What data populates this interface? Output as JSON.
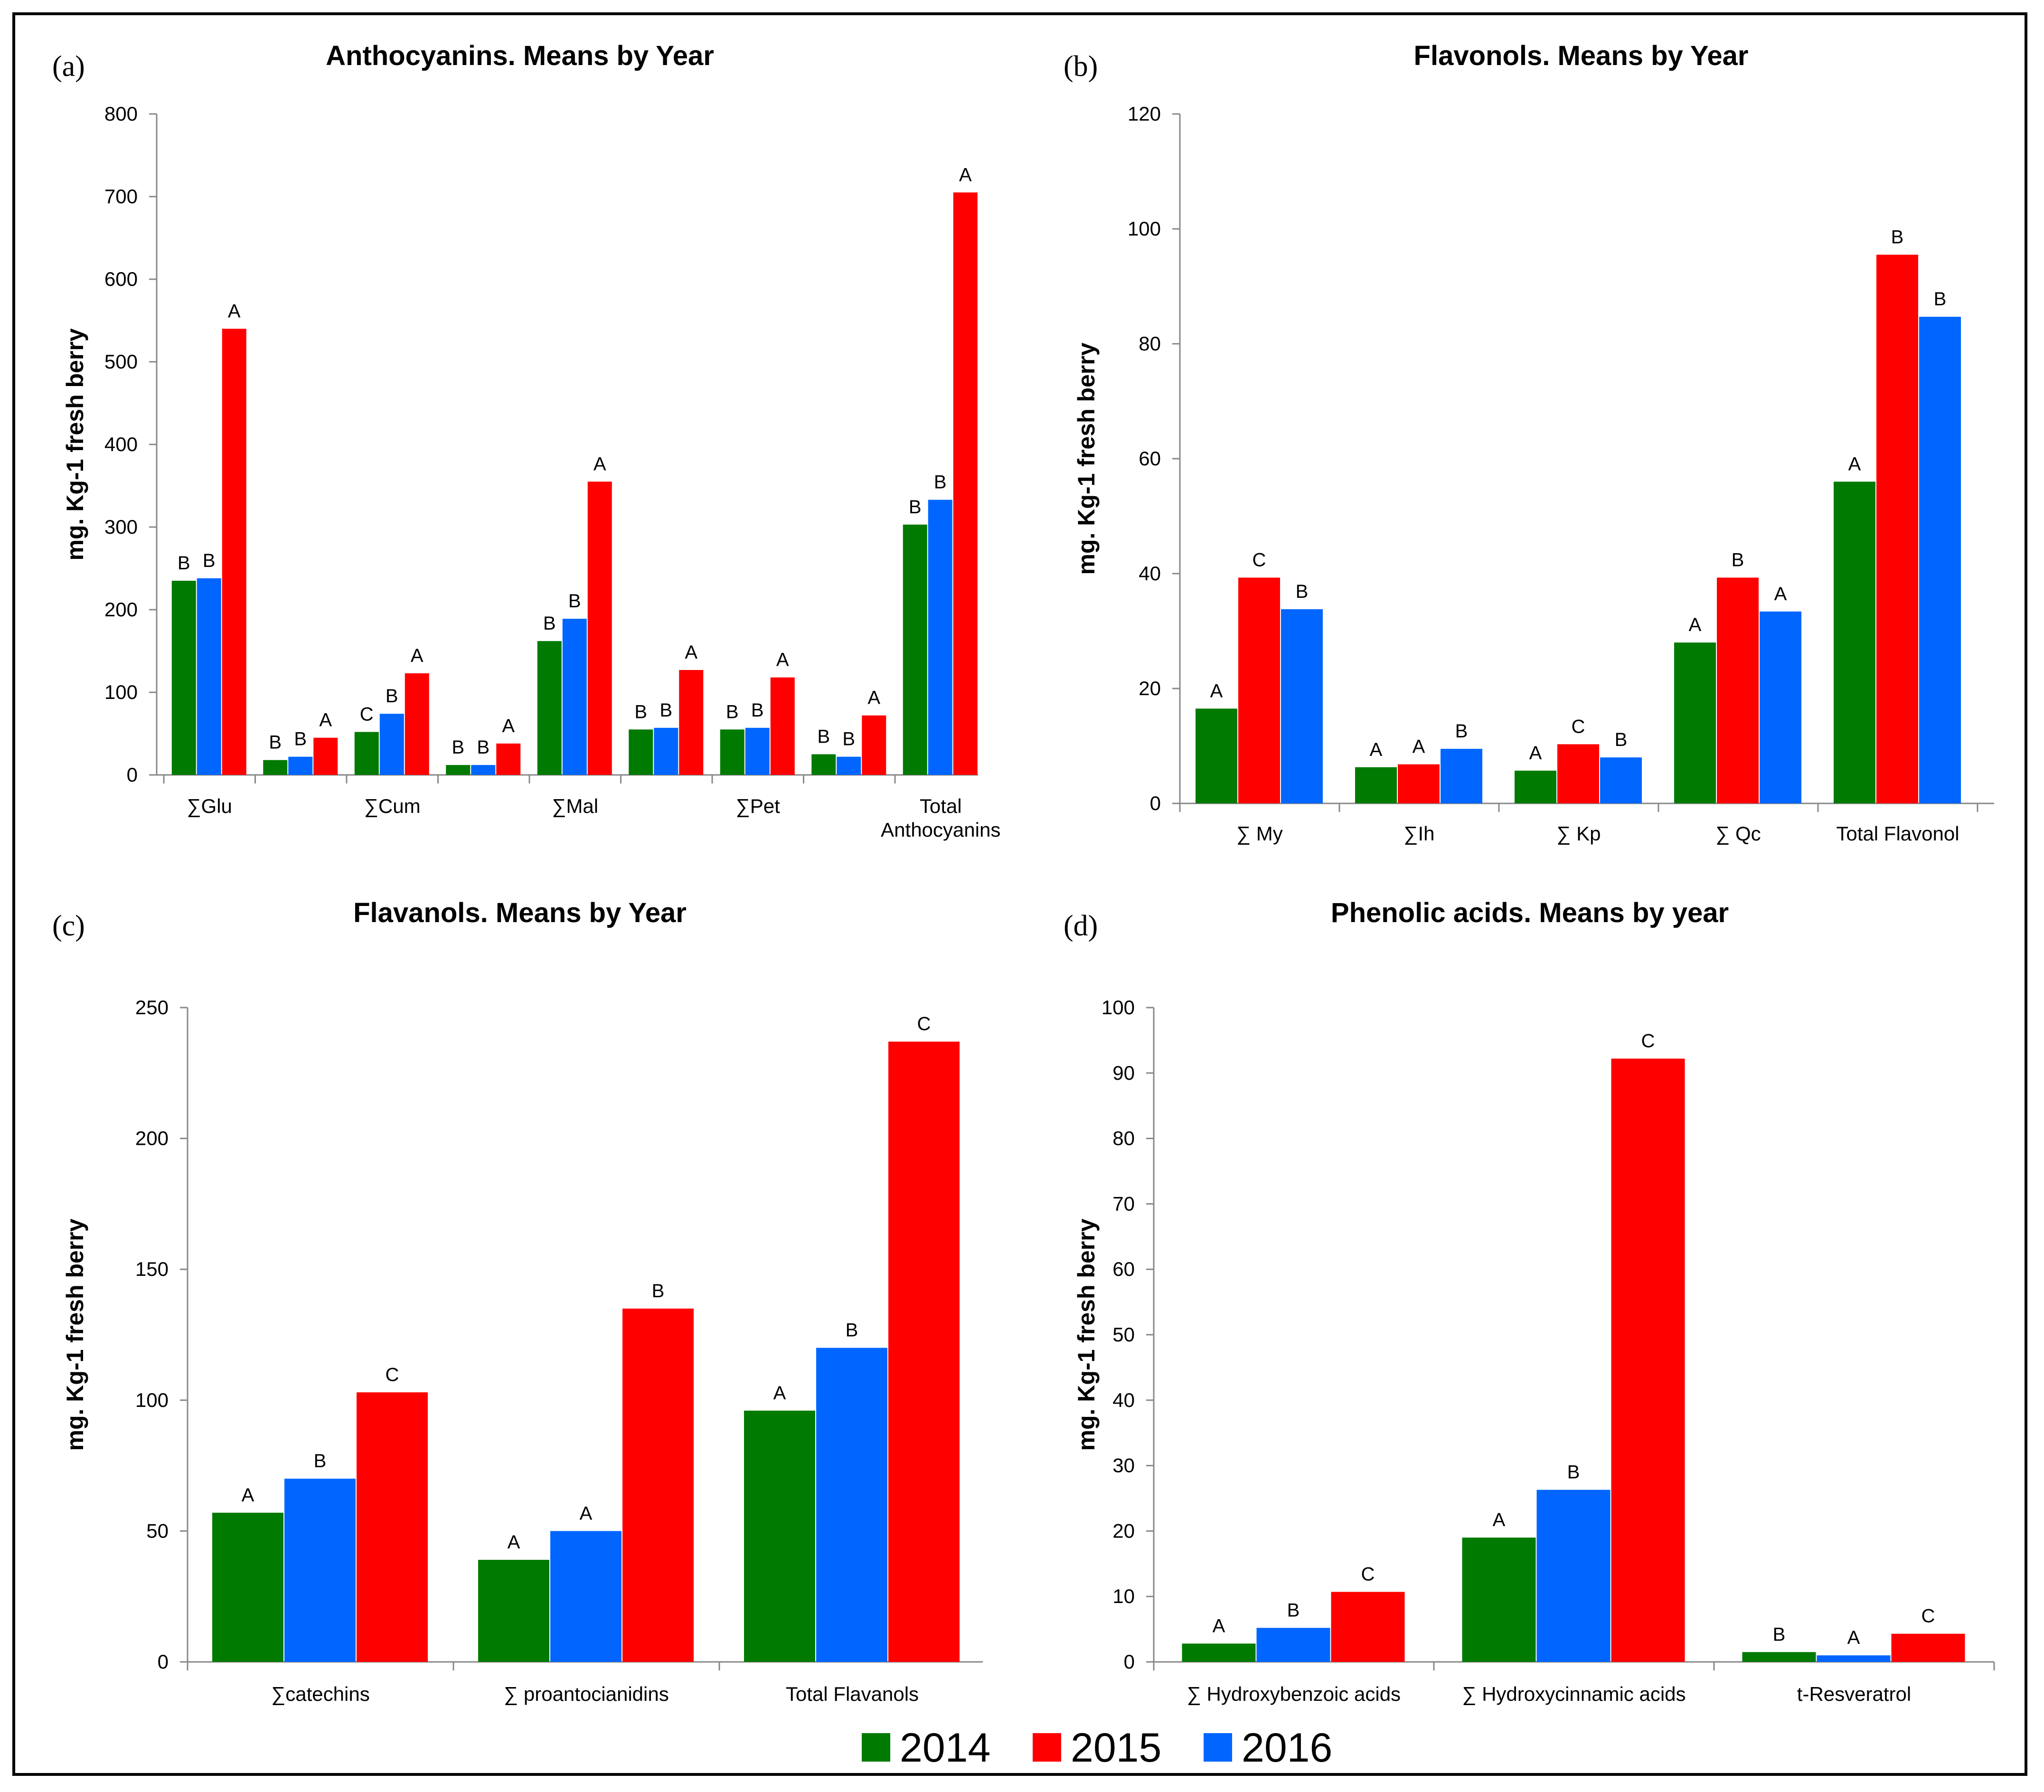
{
  "colors": {
    "2014": "#007A00",
    "2015": "#FF0000",
    "2016": "#0066FF"
  },
  "legend": {
    "items": [
      "2014",
      "2015",
      "2016"
    ]
  },
  "chart_data": [
    {
      "panel": "(a)",
      "type": "bar",
      "title": "Anthocyanins.  Means by Year",
      "ylabel": "mg. Kg-1 fresh berry",
      "ylim": [
        0,
        800
      ],
      "yticks": [
        0,
        100,
        200,
        300,
        400,
        500,
        600,
        700,
        800
      ],
      "categories": [
        "∑Glu",
        "",
        "∑Cum",
        "",
        "∑Mal",
        "",
        "∑Pet",
        "",
        "Total Anthocyanins"
      ],
      "series": [
        {
          "name": "2014",
          "values": [
            235,
            18,
            52,
            12,
            162,
            55,
            55,
            25,
            303
          ],
          "letters": [
            "B",
            "B",
            "C",
            "B",
            "B",
            "B",
            "B",
            "B",
            "B"
          ]
        },
        {
          "name": "2016",
          "values": [
            238,
            22,
            74,
            12,
            189,
            57,
            57,
            22,
            333
          ],
          "letters": [
            "B",
            "B",
            "B",
            "B",
            "B",
            "B",
            "B",
            "B",
            "B"
          ]
        },
        {
          "name": "2015",
          "values": [
            540,
            45,
            123,
            38,
            355,
            127,
            118,
            72,
            705
          ],
          "letters": [
            "A",
            "A",
            "A",
            "A",
            "A",
            "A",
            "A",
            "A",
            "A"
          ]
        }
      ]
    },
    {
      "panel": "(b)",
      "type": "bar",
      "title": "Flavonols. Means by Year",
      "ylabel": "mg. Kg-1 fresh berry",
      "ylim": [
        0,
        120
      ],
      "yticks": [
        0,
        20,
        40,
        60,
        80,
        100,
        120
      ],
      "categories": [
        "∑ My",
        "∑Ih",
        "∑ Kp",
        "∑ Qc",
        "Total Flavonol"
      ],
      "series": [
        {
          "name": "2014",
          "values": [
            16.5,
            6.3,
            5.7,
            28.0,
            56.0
          ],
          "letters": [
            "A",
            "A",
            "A",
            "A",
            "A"
          ]
        },
        {
          "name": "2015",
          "values": [
            39.3,
            6.8,
            10.3,
            39.3,
            95.5
          ],
          "letters": [
            "C",
            "A",
            "C",
            "B",
            "B"
          ]
        },
        {
          "name": "2016",
          "values": [
            33.8,
            9.5,
            8.0,
            33.4,
            84.7
          ],
          "letters": [
            "B",
            "B",
            "B",
            "A",
            "B"
          ]
        }
      ]
    },
    {
      "panel": "(c)",
      "type": "bar",
      "title": "Flavanols. Means by Year",
      "ylabel": "mg. Kg-1 fresh berry",
      "ylim": [
        0,
        250
      ],
      "yticks": [
        0,
        50,
        100,
        150,
        200,
        250
      ],
      "categories": [
        "∑catechins",
        "∑ proantocianidins",
        "Total Flavanols"
      ],
      "series": [
        {
          "name": "2014",
          "values": [
            57,
            39,
            96
          ],
          "letters": [
            "A",
            "A",
            "A"
          ]
        },
        {
          "name": "2016",
          "values": [
            70,
            50,
            120
          ],
          "letters": [
            "B",
            "A",
            "B"
          ]
        },
        {
          "name": "2015",
          "values": [
            103,
            135,
            237
          ],
          "letters": [
            "C",
            "B",
            "C"
          ]
        }
      ]
    },
    {
      "panel": "(d)",
      "type": "bar",
      "title": "Phenolic acids. Means by year",
      "ylabel": "mg. Kg-1 fresh berry",
      "ylim": [
        0,
        100
      ],
      "yticks": [
        0,
        10,
        20,
        30,
        40,
        50,
        60,
        70,
        80,
        90,
        100
      ],
      "categories": [
        "∑ Hydroxybenzoic acids",
        "∑ Hydroxycinnamic acids",
        "t-Resveratrol"
      ],
      "series": [
        {
          "name": "2014",
          "values": [
            2.8,
            19.0,
            1.5
          ],
          "letters": [
            "A",
            "A",
            "B"
          ]
        },
        {
          "name": "2016",
          "values": [
            5.2,
            26.3,
            1.0
          ],
          "letters": [
            "B",
            "B",
            "A"
          ]
        },
        {
          "name": "2015",
          "values": [
            10.7,
            92.2,
            4.3
          ],
          "letters": [
            "C",
            "C",
            "C"
          ]
        }
      ]
    }
  ]
}
